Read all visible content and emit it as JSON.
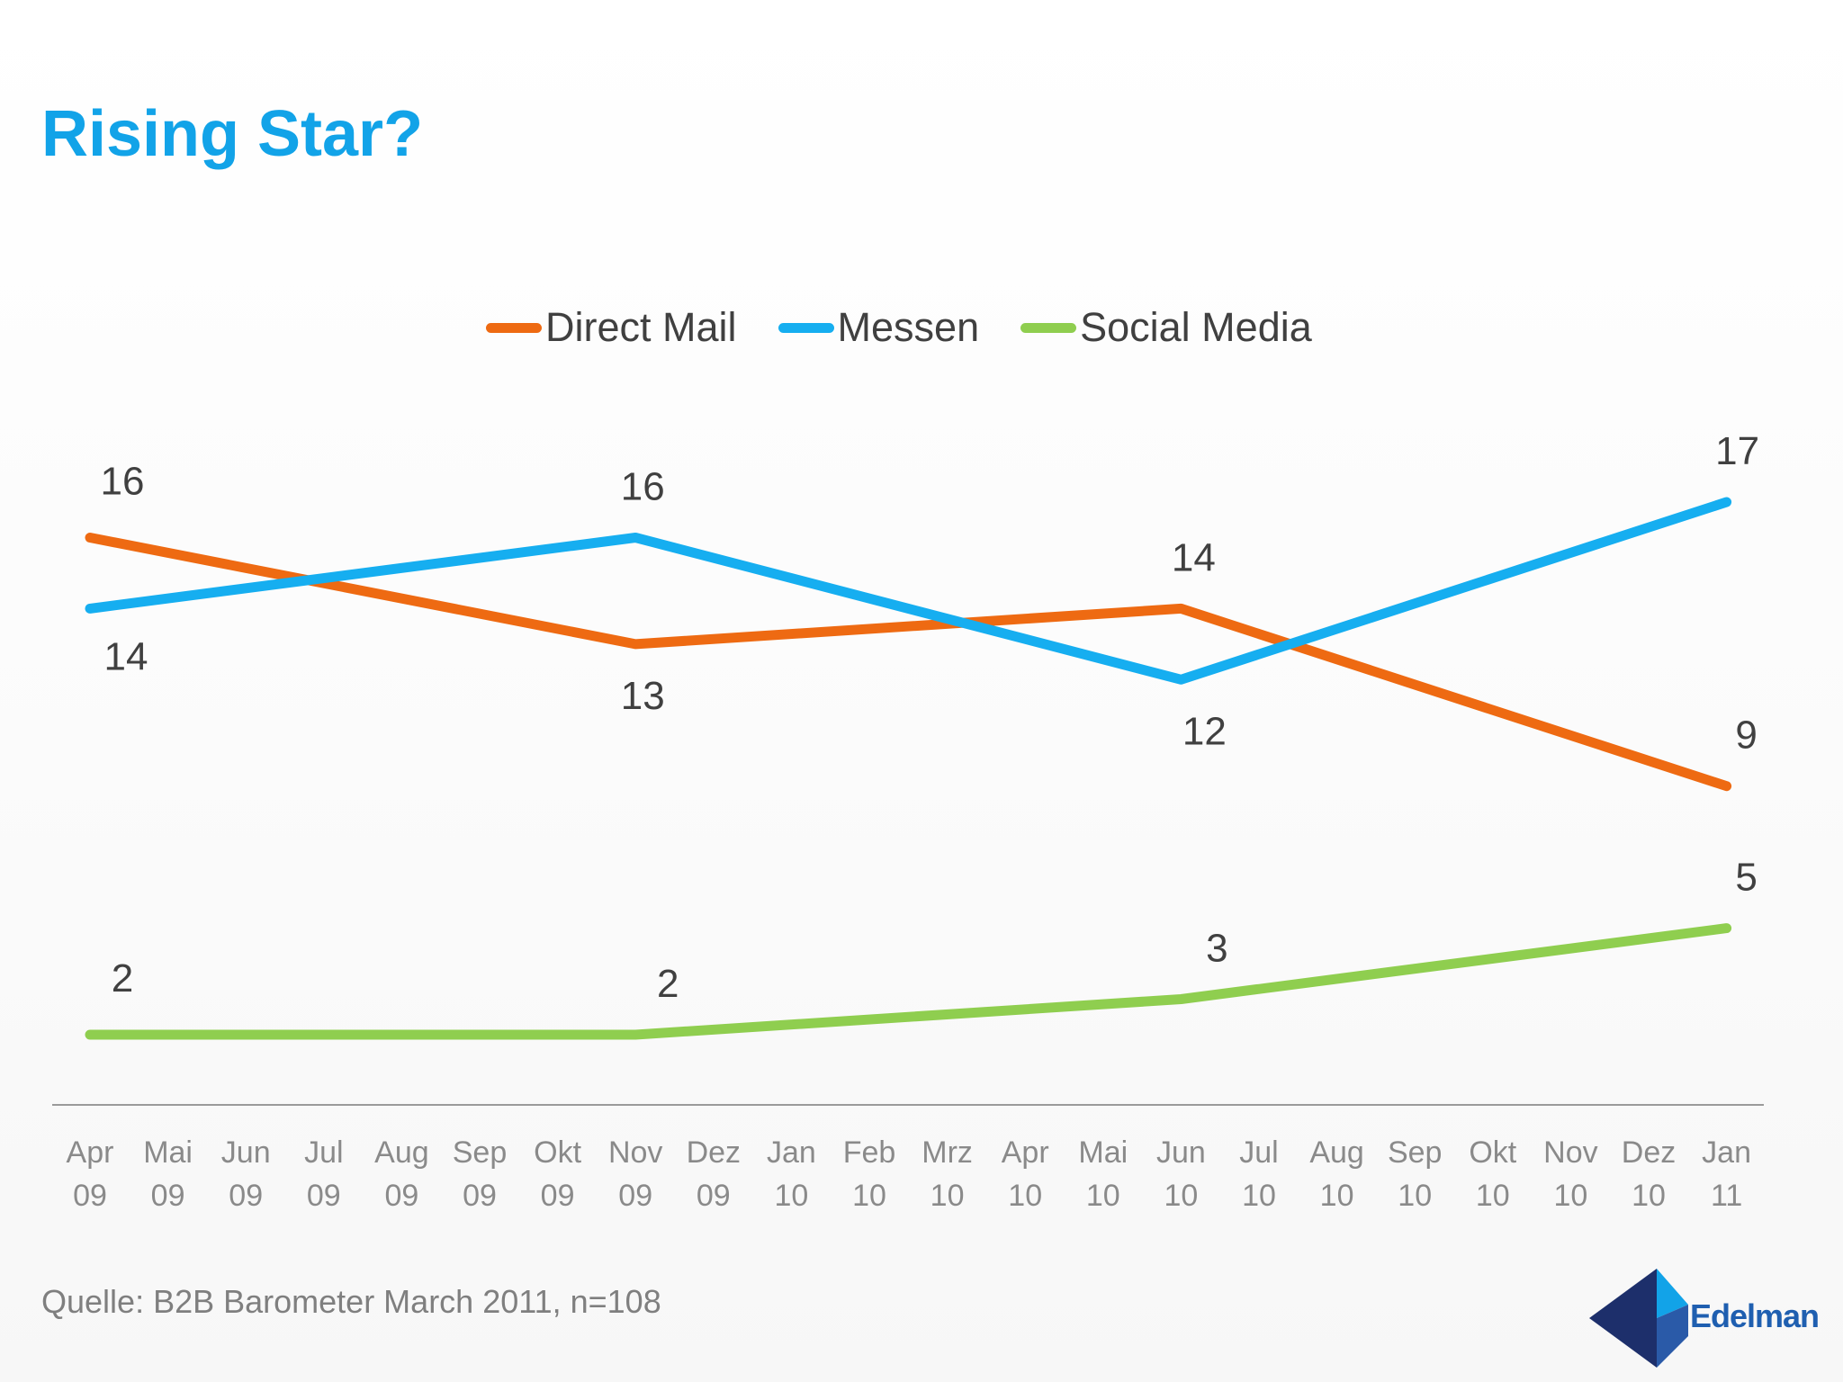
{
  "title": "Rising Star?",
  "source": "Quelle: B2B Barometer March 2011, n=108",
  "logo_text": "Edelman",
  "colors": {
    "title": "#12a3e8",
    "direct_mail": "#ee6a12",
    "messen": "#16aef0",
    "social_media": "#8fce4f"
  },
  "chart_data": {
    "type": "line",
    "categories": [
      [
        "Apr",
        "09"
      ],
      [
        "Mai",
        "09"
      ],
      [
        "Jun",
        "09"
      ],
      [
        "Jul",
        "09"
      ],
      [
        "Aug",
        "09"
      ],
      [
        "Sep",
        "09"
      ],
      [
        "Okt",
        "09"
      ],
      [
        "Nov",
        "09"
      ],
      [
        "Dez",
        "09"
      ],
      [
        "Jan",
        "10"
      ],
      [
        "Feb",
        "10"
      ],
      [
        "Mrz",
        "10"
      ],
      [
        "Apr",
        "10"
      ],
      [
        "Mai",
        "10"
      ],
      [
        "Jun",
        "10"
      ],
      [
        "Jul",
        "10"
      ],
      [
        "Aug",
        "10"
      ],
      [
        "Sep",
        "10"
      ],
      [
        "Okt",
        "10"
      ],
      [
        "Nov",
        "10"
      ],
      [
        "Dez",
        "10"
      ],
      [
        "Jan",
        "11"
      ]
    ],
    "series": [
      {
        "name": "Direct Mail",
        "color": "#ee6a12",
        "points": [
          {
            "i": 0,
            "v": 16
          },
          {
            "i": 7,
            "v": 13
          },
          {
            "i": 14,
            "v": 14
          },
          {
            "i": 21,
            "v": 9
          }
        ],
        "labels": [
          "16",
          "13",
          "14",
          "9"
        ]
      },
      {
        "name": "Messen",
        "color": "#16aef0",
        "points": [
          {
            "i": 0,
            "v": 14
          },
          {
            "i": 7,
            "v": 16
          },
          {
            "i": 14,
            "v": 12
          },
          {
            "i": 21,
            "v": 17
          }
        ],
        "labels": [
          "14",
          "16",
          "12",
          "17"
        ]
      },
      {
        "name": "Social Media",
        "color": "#8fce4f",
        "points": [
          {
            "i": 0,
            "v": 2
          },
          {
            "i": 7,
            "v": 2
          },
          {
            "i": 14,
            "v": 3
          },
          {
            "i": 21,
            "v": 5
          }
        ],
        "labels": [
          "2",
          "2",
          "3",
          "5"
        ]
      }
    ],
    "ylim": [
      0,
      19
    ],
    "grid": false,
    "legend_position": "top"
  }
}
